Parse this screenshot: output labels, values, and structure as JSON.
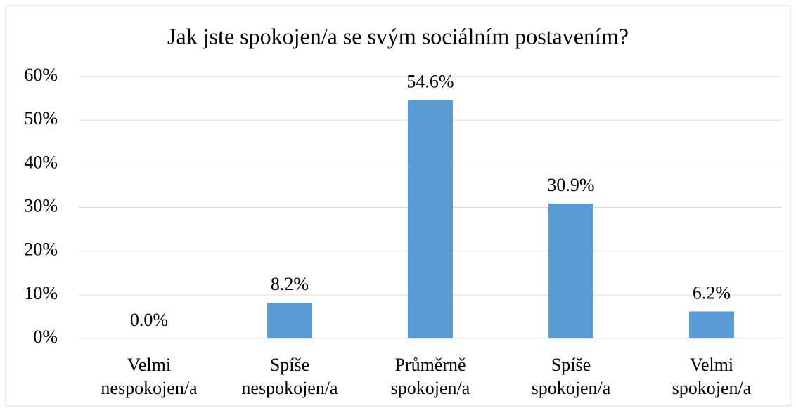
{
  "chart_data": {
    "type": "bar",
    "title": "Jak jste spokojen/a se svým sociálním postavením?",
    "categories": [
      "Velmi\nnespokojen/a",
      "Spíše\nnespokojen/a",
      "Průměrně\nspokojen/a",
      "Spíše\nspokojen/a",
      "Velmi\nspokojen/a"
    ],
    "values": [
      0,
      8.2,
      54.6,
      30.9,
      6.2
    ],
    "value_labels": [
      "0.0%",
      "8.2%",
      "54.6%",
      "30.9%",
      "6.2%"
    ],
    "color": "#5b9bd5",
    "ylim": [
      0,
      60
    ],
    "yticks": [
      {
        "value": 0,
        "label": "0%"
      },
      {
        "value": 10,
        "label": "10%"
      },
      {
        "value": 20,
        "label": "20%"
      },
      {
        "value": 30,
        "label": "30%"
      },
      {
        "value": 40,
        "label": "40%"
      },
      {
        "value": 50,
        "label": "50%"
      },
      {
        "value": 60,
        "label": "60%"
      }
    ],
    "grid": true
  }
}
